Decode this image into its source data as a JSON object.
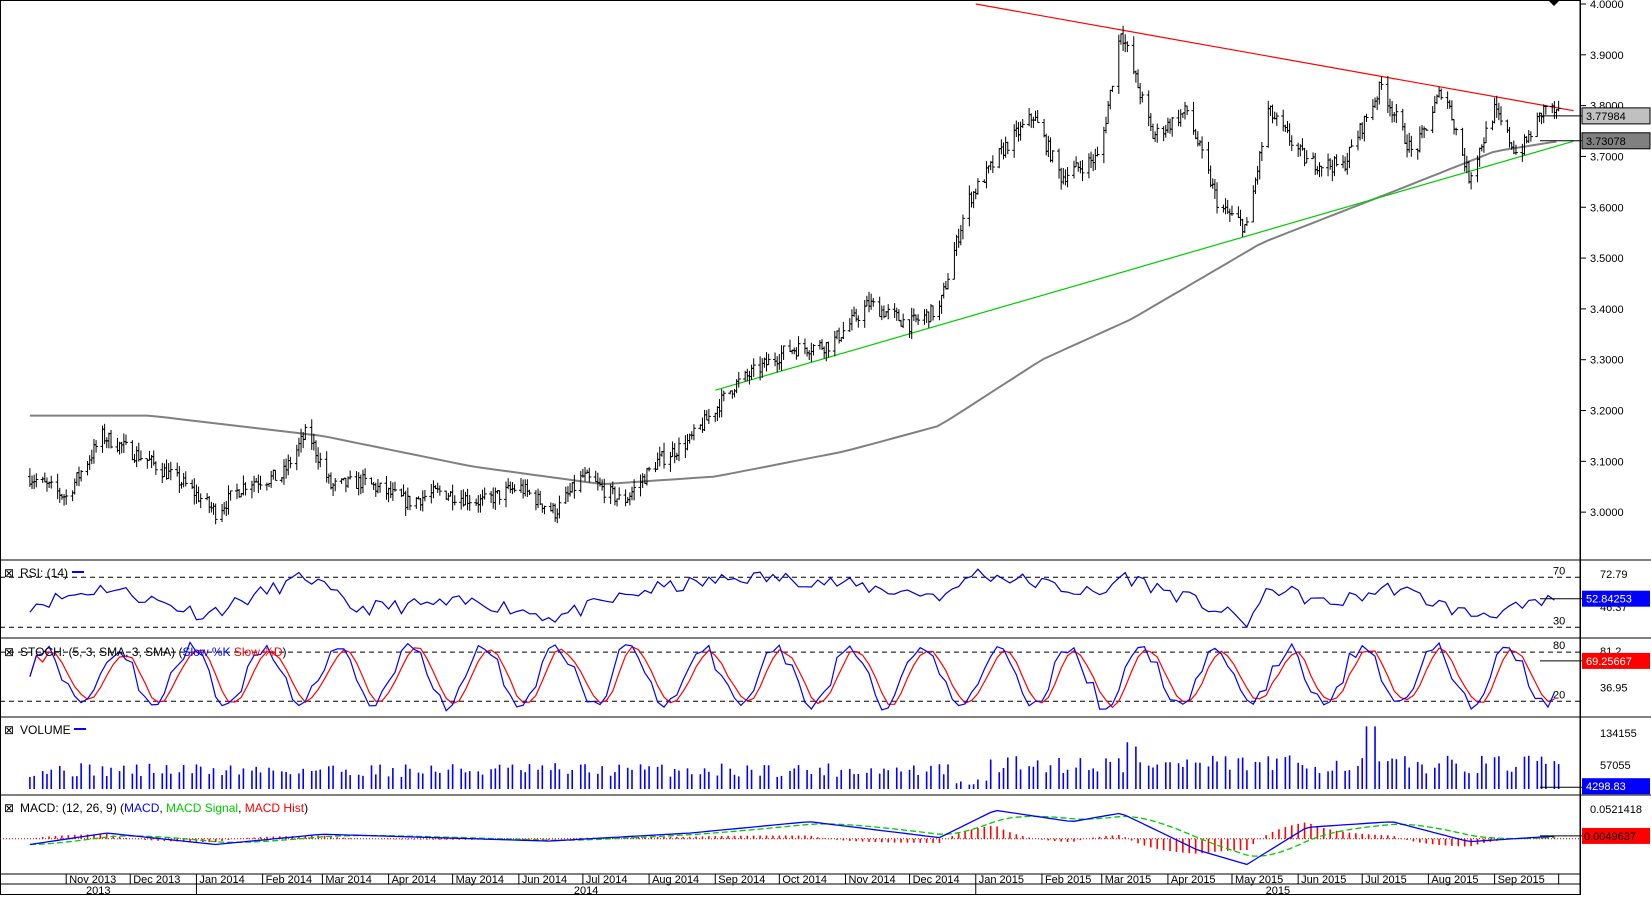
{
  "colors": {
    "price_bars": "#000000",
    "ma": "#808080",
    "resistance": "#ff0000",
    "support": "#00cc00",
    "rsi": "#0000cc",
    "stoch_k": "#0000ff",
    "stoch_d": "#ff0000",
    "volume": "#0000ff",
    "macd": "#0000ff",
    "macd_signal": "#00cc00",
    "macd_hist": "#ff0000",
    "tag_dark": "#808080",
    "tag_red": "#ff0000",
    "tag_blue": "#0000ff"
  },
  "panels": {
    "rsi": {
      "close_label": "⊠",
      "title": "RSI: (14)"
    },
    "stoch": {
      "close_label": "⊠",
      "title_prefix": "STOCH: (5, 3, SMA, 3, SMA) (",
      "k": "Slow %K",
      "d": "Slow %D",
      "title_suffix": ")"
    },
    "volume": {
      "close_label": "⊠",
      "title": "VOLUME"
    },
    "macd": {
      "close_label": "⊠",
      "title_prefix": "MACD: (12, 26, 9) (",
      "macd": "MACD",
      "signal": "MACD Signal",
      "hist": "MACD Hist",
      "title_suffix": ")"
    }
  },
  "chart_data": {
    "type": "candlestick",
    "instrument_hint": "",
    "x_months": [
      "Nov 2013",
      "Dec 2013",
      "Jan 2014",
      "Feb 2014",
      "Mar 2014",
      "Apr 2014",
      "May 2014",
      "Jun 2014",
      "Jul 2014",
      "Aug 2014",
      "Sep 2014",
      "Oct 2014",
      "Nov 2014",
      "Dec 2014",
      "Jan 2015",
      "Feb 2015",
      "Mar 2015",
      "Apr 2015",
      "May 2015",
      "Jun 2015",
      "Jul 2015",
      "Aug 2015",
      "Sep 2015"
    ],
    "x_years": [
      "2013",
      "2014",
      "2015"
    ],
    "price_axis": {
      "ylim": [
        2.955,
        4.0
      ],
      "ticks": [
        "4.0000",
        "3.9000",
        "3.8000",
        "3.7000",
        "3.6000",
        "3.5000",
        "3.4000",
        "3.3000",
        "3.2000",
        "3.1000",
        "3.0000"
      ],
      "tags": {
        "last": "3.77984",
        "ma": "3.73078"
      }
    },
    "price_path": [
      {
        "date": "2013-10-15",
        "close": 3.07
      },
      {
        "date": "2013-11-01",
        "close": 3.03
      },
      {
        "date": "2013-11-18",
        "close": 3.15
      },
      {
        "date": "2013-12-10",
        "close": 3.1
      },
      {
        "date": "2013-12-28",
        "close": 3.05
      },
      {
        "date": "2014-01-10",
        "close": 3.0
      },
      {
        "date": "2014-01-25",
        "close": 3.06
      },
      {
        "date": "2014-02-10",
        "close": 3.07
      },
      {
        "date": "2014-02-22",
        "close": 3.16
      },
      {
        "date": "2014-03-05",
        "close": 3.05
      },
      {
        "date": "2014-03-20",
        "close": 3.06
      },
      {
        "date": "2014-04-10",
        "close": 3.02
      },
      {
        "date": "2014-04-25",
        "close": 3.04
      },
      {
        "date": "2014-05-15",
        "close": 3.02
      },
      {
        "date": "2014-06-01",
        "close": 3.05
      },
      {
        "date": "2014-06-18",
        "close": 3.0
      },
      {
        "date": "2014-07-01",
        "close": 3.07
      },
      {
        "date": "2014-07-20",
        "close": 3.02
      },
      {
        "date": "2014-08-05",
        "close": 3.1
      },
      {
        "date": "2014-08-20",
        "close": 3.14
      },
      {
        "date": "2014-09-10",
        "close": 3.25
      },
      {
        "date": "2014-10-05",
        "close": 3.32
      },
      {
        "date": "2014-10-25",
        "close": 3.33
      },
      {
        "date": "2014-11-12",
        "close": 3.41
      },
      {
        "date": "2014-12-01",
        "close": 3.37
      },
      {
        "date": "2014-12-15",
        "close": 3.4
      },
      {
        "date": "2014-12-28",
        "close": 3.61
      },
      {
        "date": "2015-01-15",
        "close": 3.72
      },
      {
        "date": "2015-01-28",
        "close": 3.78
      },
      {
        "date": "2015-02-10",
        "close": 3.66
      },
      {
        "date": "2015-02-28",
        "close": 3.7
      },
      {
        "date": "2015-03-10",
        "close": 3.95
      },
      {
        "date": "2015-03-25",
        "close": 3.74
      },
      {
        "date": "2015-04-10",
        "close": 3.79
      },
      {
        "date": "2015-04-25",
        "close": 3.6
      },
      {
        "date": "2015-05-08",
        "close": 3.56
      },
      {
        "date": "2015-05-18",
        "close": 3.79
      },
      {
        "date": "2015-06-05",
        "close": 3.69
      },
      {
        "date": "2015-06-22",
        "close": 3.68
      },
      {
        "date": "2015-07-10",
        "close": 3.84
      },
      {
        "date": "2015-07-25",
        "close": 3.7
      },
      {
        "date": "2015-08-08",
        "close": 3.84
      },
      {
        "date": "2015-08-20",
        "close": 3.66
      },
      {
        "date": "2015-09-01",
        "close": 3.79
      },
      {
        "date": "2015-09-12",
        "close": 3.7
      },
      {
        "date": "2015-09-25",
        "close": 3.8
      },
      {
        "date": "2015-10-01",
        "close": 3.78
      }
    ],
    "ma": [
      {
        "date": "2013-10-15",
        "value": 3.19
      },
      {
        "date": "2013-12-10",
        "value": 3.19
      },
      {
        "date": "2014-03-01",
        "value": 3.15
      },
      {
        "date": "2014-05-10",
        "value": 3.09
      },
      {
        "date": "2014-07-10",
        "value": 3.055
      },
      {
        "date": "2014-09-01",
        "value": 3.07
      },
      {
        "date": "2014-11-01",
        "value": 3.12
      },
      {
        "date": "2014-12-15",
        "value": 3.17
      },
      {
        "date": "2015-02-01",
        "value": 3.3
      },
      {
        "date": "2015-03-15",
        "value": 3.38
      },
      {
        "date": "2015-05-15",
        "value": 3.53
      },
      {
        "date": "2015-07-15",
        "value": 3.63
      },
      {
        "date": "2015-09-01",
        "value": 3.71
      },
      {
        "date": "2015-10-01",
        "value": 3.73
      }
    ],
    "trendlines": [
      {
        "name": "resistance",
        "from": {
          "date": "2015-01-01",
          "value": 4.0
        },
        "to": {
          "date": "2015-10-08",
          "value": 3.79
        }
      },
      {
        "name": "support",
        "from": {
          "date": "2014-09-01",
          "value": 3.24
        },
        "to": {
          "date": "2015-10-08",
          "value": 3.73
        }
      }
    ],
    "rsi": {
      "levels": [
        "70",
        "30"
      ],
      "scale_labels": [
        "72.79",
        "46.37"
      ],
      "current": "52.84253",
      "path": [
        {
          "date": "2013-10-15",
          "value": 48
        },
        {
          "date": "2013-11-20",
          "value": 62
        },
        {
          "date": "2014-01-05",
          "value": 40
        },
        {
          "date": "2014-02-22",
          "value": 71
        },
        {
          "date": "2014-03-15",
          "value": 45
        },
        {
          "date": "2014-05-15",
          "value": 50
        },
        {
          "date": "2014-06-18",
          "value": 38
        },
        {
          "date": "2014-08-01",
          "value": 60
        },
        {
          "date": "2014-09-15",
          "value": 70
        },
        {
          "date": "2014-10-15",
          "value": 68
        },
        {
          "date": "2014-11-20",
          "value": 60
        },
        {
          "date": "2014-12-20",
          "value": 55
        },
        {
          "date": "2014-12-30",
          "value": 74
        },
        {
          "date": "2015-02-01",
          "value": 65
        },
        {
          "date": "2015-03-01",
          "value": 55
        },
        {
          "date": "2015-03-10",
          "value": 72
        },
        {
          "date": "2015-04-15",
          "value": 50
        },
        {
          "date": "2015-05-08",
          "value": 34
        },
        {
          "date": "2015-05-20",
          "value": 62
        },
        {
          "date": "2015-06-15",
          "value": 48
        },
        {
          "date": "2015-07-15",
          "value": 62
        },
        {
          "date": "2015-08-20",
          "value": 40
        },
        {
          "date": "2015-09-15",
          "value": 45
        },
        {
          "date": "2015-10-01",
          "value": 53
        }
      ]
    },
    "stochastic": {
      "levels": [
        "80",
        "20"
      ],
      "scale_labels": [
        "81.2",
        "36.95"
      ],
      "current_k": "69.25667",
      "ylim": [
        0,
        100
      ]
    },
    "volume": {
      "scale_labels": [
        "134155",
        "57055"
      ],
      "current": "4298.83",
      "ylim": [
        0,
        170000
      ]
    },
    "macd": {
      "scale_labels": [
        "0.0521418"
      ],
      "current": "0.0049637",
      "ylim": [
        -0.06,
        0.075
      ],
      "path": [
        {
          "date": "2013-10-15",
          "value": -0.01
        },
        {
          "date": "2013-11-20",
          "value": 0.01
        },
        {
          "date": "2014-01-10",
          "value": -0.01
        },
        {
          "date": "2014-03-01",
          "value": 0.008
        },
        {
          "date": "2014-06-15",
          "value": -0.004
        },
        {
          "date": "2014-08-20",
          "value": 0.01
        },
        {
          "date": "2014-10-15",
          "value": 0.03
        },
        {
          "date": "2014-12-15",
          "value": 0.002
        },
        {
          "date": "2015-01-10",
          "value": 0.05
        },
        {
          "date": "2015-02-15",
          "value": 0.03
        },
        {
          "date": "2015-03-10",
          "value": 0.045
        },
        {
          "date": "2015-04-15",
          "value": -0.02
        },
        {
          "date": "2015-05-08",
          "value": -0.045
        },
        {
          "date": "2015-06-05",
          "value": 0.02
        },
        {
          "date": "2015-07-15",
          "value": 0.03
        },
        {
          "date": "2015-08-20",
          "value": -0.005
        },
        {
          "date": "2015-10-01",
          "value": 0.005
        }
      ]
    }
  }
}
